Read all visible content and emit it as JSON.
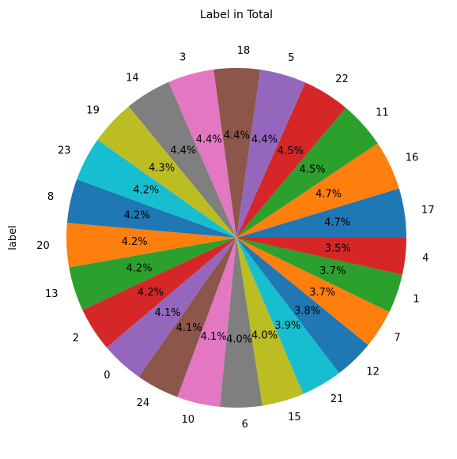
{
  "chart_data": {
    "type": "pie",
    "title": "Label in Total",
    "ylabel": "label",
    "start_angle_deg": 0,
    "direction": "counterclockwise",
    "pct_format": "%1.1f%%",
    "slices": [
      {
        "label": "17",
        "pct": 4.7,
        "color": "#1f77b4"
      },
      {
        "label": "16",
        "pct": 4.7,
        "color": "#ff7f0e"
      },
      {
        "label": "11",
        "pct": 4.5,
        "color": "#2ca02c"
      },
      {
        "label": "22",
        "pct": 4.5,
        "color": "#d62728"
      },
      {
        "label": "5",
        "pct": 4.4,
        "color": "#9467bd"
      },
      {
        "label": "18",
        "pct": 4.4,
        "color": "#8c564b"
      },
      {
        "label": "3",
        "pct": 4.4,
        "color": "#e377c2"
      },
      {
        "label": "14",
        "pct": 4.4,
        "color": "#7f7f7f"
      },
      {
        "label": "19",
        "pct": 4.3,
        "color": "#bcbd22"
      },
      {
        "label": "23",
        "pct": 4.2,
        "color": "#17becf"
      },
      {
        "label": "8",
        "pct": 4.2,
        "color": "#1f77b4"
      },
      {
        "label": "20",
        "pct": 4.2,
        "color": "#ff7f0e"
      },
      {
        "label": "13",
        "pct": 4.2,
        "color": "#2ca02c"
      },
      {
        "label": "2",
        "pct": 4.2,
        "color": "#d62728"
      },
      {
        "label": "0",
        "pct": 4.1,
        "color": "#9467bd"
      },
      {
        "label": "24",
        "pct": 4.1,
        "color": "#8c564b"
      },
      {
        "label": "10",
        "pct": 4.1,
        "color": "#e377c2"
      },
      {
        "label": "6",
        "pct": 4.0,
        "color": "#7f7f7f"
      },
      {
        "label": "15",
        "pct": 4.0,
        "color": "#bcbd22"
      },
      {
        "label": "21",
        "pct": 3.9,
        "color": "#17becf"
      },
      {
        "label": "12",
        "pct": 3.8,
        "color": "#1f77b4"
      },
      {
        "label": "7",
        "pct": 3.7,
        "color": "#ff7f0e"
      },
      {
        "label": "1",
        "pct": 3.7,
        "color": "#2ca02c"
      },
      {
        "label": "4",
        "pct": 3.5,
        "color": "#d62728"
      }
    ]
  }
}
